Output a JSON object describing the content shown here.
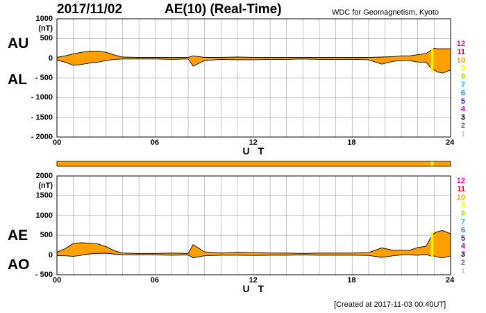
{
  "header": {
    "date": "2017/11/02",
    "title": "AE(10) (Real-Time)",
    "source": "WDC for Geomagnetism, Kyoto",
    "created": "[Created at 2017-11-03 00:40UT]"
  },
  "panel_labels": {
    "au": "AU",
    "al": "AL",
    "ae": "AE",
    "ao": "AO"
  },
  "legend": [
    {
      "label": "12",
      "color": "#ff1493"
    },
    {
      "label": "11",
      "color": "#e8001f"
    },
    {
      "label": "10",
      "color": "#ffa000"
    },
    {
      "label": "9",
      "color": "#ffff00"
    },
    {
      "label": "8",
      "color": "#98f000"
    },
    {
      "label": "7",
      "color": "#00d8e8"
    },
    {
      "label": "6",
      "color": "#1e78ff"
    },
    {
      "label": "5",
      "color": "#2a2ab8"
    },
    {
      "label": "4",
      "color": "#c000c0"
    },
    {
      "label": "3",
      "color": "#000000"
    },
    {
      "label": "2",
      "color": "#707070"
    },
    {
      "label": "1",
      "color": "#c8c8c8"
    }
  ],
  "colors": {
    "fill": "#ffa000",
    "highlight": "#ffff00",
    "grid": "#a0a0a0"
  },
  "chart_data": [
    {
      "type": "area",
      "name": "AU/AL",
      "xlabel": "U T",
      "ylabel_unit": "(nT)",
      "xlim": [
        0,
        24
      ],
      "ylim": [
        -2000,
        1000
      ],
      "yticks": [
        1000,
        500,
        0,
        -500,
        -1000,
        -1500,
        -2000
      ],
      "ytick_labels": [
        "1000",
        "500",
        "0",
        "- 500",
        "- 1000",
        "- 1500",
        "- 2000"
      ],
      "xticks": [
        0,
        6,
        12,
        18,
        24
      ],
      "xtick_labels": [
        "00",
        "06",
        "12",
        "18",
        "24"
      ],
      "grid": true,
      "series": [
        {
          "name": "AU",
          "x": [
            0,
            0.5,
            1,
            1.5,
            2,
            2.5,
            3,
            3.5,
            4,
            5,
            6,
            7,
            8,
            8.3,
            9,
            10,
            11,
            12,
            13,
            14,
            15,
            16,
            17,
            18,
            19,
            19.8,
            20.5,
            21,
            21.5,
            22,
            22.5,
            22.8,
            23,
            23.2,
            23.5,
            24
          ],
          "y": [
            20,
            60,
            110,
            150,
            180,
            180,
            150,
            80,
            30,
            20,
            20,
            20,
            20,
            60,
            20,
            20,
            30,
            20,
            20,
            20,
            20,
            20,
            20,
            20,
            20,
            30,
            40,
            60,
            60,
            90,
            120,
            200,
            250,
            240,
            240,
            240
          ]
        },
        {
          "name": "AL",
          "x": [
            0,
            0.5,
            1,
            1.5,
            2,
            2.5,
            3,
            3.5,
            4,
            5,
            6,
            7,
            8,
            8.3,
            9,
            10,
            11,
            12,
            13,
            14,
            15,
            16,
            17,
            18,
            19,
            19.8,
            20.5,
            21,
            21.5,
            22,
            22.5,
            22.8,
            23,
            23.2,
            23.5,
            24
          ],
          "y": [
            -50,
            -100,
            -180,
            -160,
            -120,
            -100,
            -60,
            -30,
            -20,
            -20,
            -20,
            -30,
            -20,
            -200,
            -60,
            -30,
            -40,
            -40,
            -30,
            -30,
            -20,
            -30,
            -30,
            -30,
            -40,
            -150,
            -80,
            -60,
            -60,
            -100,
            -100,
            -250,
            -300,
            -350,
            -380,
            -300
          ]
        }
      ]
    },
    {
      "type": "area",
      "name": "AE/AO",
      "xlabel": "U T",
      "ylabel_unit": "(nT)",
      "xlim": [
        0,
        24
      ],
      "ylim": [
        -500,
        2000
      ],
      "yticks": [
        2000,
        1500,
        1000,
        500,
        0,
        -500
      ],
      "ytick_labels": [
        "2000",
        "1500",
        "1000",
        "500",
        "0",
        "- 500"
      ],
      "xticks": [
        0,
        6,
        12,
        18,
        24
      ],
      "xtick_labels": [
        "00",
        "06",
        "12",
        "18",
        "24"
      ],
      "grid": true,
      "series": [
        {
          "name": "AE",
          "x": [
            0,
            0.5,
            1,
            1.5,
            2,
            2.5,
            3,
            3.5,
            4,
            5,
            6,
            7,
            8,
            8.3,
            9,
            10,
            11,
            12,
            13,
            14,
            15,
            16,
            17,
            18,
            19,
            19.8,
            20.5,
            21,
            21.5,
            22,
            22.5,
            22.8,
            23,
            23.2,
            23.5,
            24
          ],
          "y": [
            70,
            160,
            290,
            310,
            300,
            280,
            210,
            110,
            50,
            40,
            40,
            50,
            40,
            260,
            80,
            50,
            70,
            60,
            50,
            50,
            40,
            50,
            50,
            50,
            60,
            180,
            120,
            120,
            120,
            190,
            220,
            450,
            550,
            590,
            620,
            540
          ]
        },
        {
          "name": "AO",
          "x": [
            0,
            0.5,
            1,
            1.5,
            2,
            2.5,
            3,
            3.5,
            4,
            5,
            6,
            7,
            8,
            8.3,
            9,
            10,
            11,
            12,
            13,
            14,
            15,
            16,
            17,
            18,
            19,
            19.8,
            20.5,
            21,
            21.5,
            22,
            22.5,
            22.8,
            23,
            23.2,
            23.5,
            24
          ],
          "y": [
            -15,
            -20,
            -35,
            -5,
            30,
            40,
            45,
            25,
            5,
            0,
            0,
            -5,
            0,
            -70,
            -20,
            -5,
            -5,
            -10,
            -5,
            -5,
            0,
            -5,
            -5,
            -5,
            -10,
            -60,
            -20,
            0,
            0,
            -5,
            10,
            -25,
            -25,
            -55,
            -70,
            -30
          ]
        }
      ]
    }
  ],
  "status_bar": {
    "intervals": [
      {
        "x": [
          0,
          22.8
        ],
        "station_count": "10"
      },
      {
        "x": [
          22.8,
          22.95
        ],
        "station_count": "9"
      },
      {
        "x": [
          22.95,
          24
        ],
        "station_count": "10"
      }
    ]
  }
}
